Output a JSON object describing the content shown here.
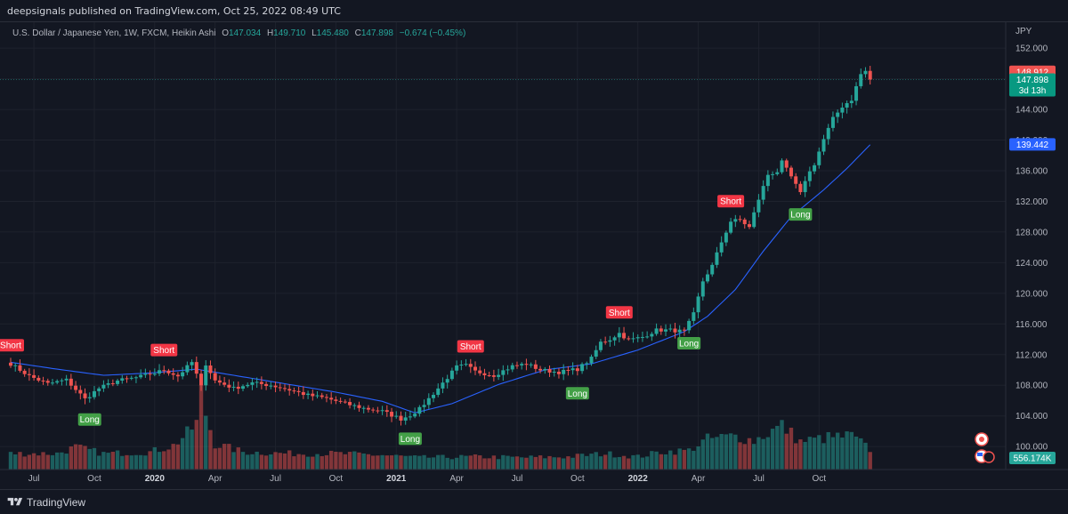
{
  "header": {
    "published": "deepsignals published on TradingView.com, Oct 25, 2022 08:49 UTC"
  },
  "legend": {
    "symbol": "U.S. Dollar / Japanese Yen, 1W, FXCM, Heikin Ashi",
    "o_label": "O",
    "o": "147.034",
    "h_label": "H",
    "h": "149.710",
    "l_label": "L",
    "l": "145.480",
    "c_label": "C",
    "c": "147.898",
    "change": "−0.674 (−0.45%)"
  },
  "footer": {
    "brand": "TradingView"
  },
  "colors": {
    "bg": "#131722",
    "up": "#26a69a",
    "down": "#ef5350",
    "ma": "#2962ff",
    "grid": "#1e222d",
    "text": "#b2b5be"
  },
  "chart_data": {
    "type": "candlestick",
    "currency": "JPY",
    "ylim": [
      97,
      155.5
    ],
    "y_ticks": [
      "152.000",
      "148.000",
      "144.000",
      "140.000",
      "136.000",
      "132.000",
      "128.000",
      "124.000",
      "120.000",
      "116.000",
      "112.000",
      "108.000",
      "104.000",
      "100.000"
    ],
    "x_ticks": [
      {
        "label": "Jul",
        "week": 5
      },
      {
        "label": "Oct",
        "week": 18
      },
      {
        "label": "2020",
        "week": 31,
        "bold": true
      },
      {
        "label": "Apr",
        "week": 44
      },
      {
        "label": "Jul",
        "week": 57
      },
      {
        "label": "Oct",
        "week": 70
      },
      {
        "label": "2021",
        "week": 83,
        "bold": true
      },
      {
        "label": "Apr",
        "week": 96
      },
      {
        "label": "Jul",
        "week": 109
      },
      {
        "label": "Oct",
        "week": 122
      },
      {
        "label": "2022",
        "week": 135,
        "bold": true
      },
      {
        "label": "Apr",
        "week": 148
      },
      {
        "label": "Jul",
        "week": 161
      },
      {
        "label": "Oct",
        "week": 174
      }
    ],
    "price_labels": [
      {
        "text": "148.912",
        "value": 148.912,
        "color": "#ef5350"
      },
      {
        "text": "147.898",
        "value": 147.898,
        "color": "#089981",
        "sub": "3d 13h"
      },
      {
        "text": "139.442",
        "value": 139.442,
        "color": "#2962ff"
      }
    ],
    "volume_label": "556.174K",
    "signals": [
      {
        "text": "Short",
        "week": 0,
        "type": "short"
      },
      {
        "text": "Long",
        "week": 17,
        "type": "long"
      },
      {
        "text": "Short",
        "week": 33,
        "type": "short"
      },
      {
        "text": "Long",
        "week": 86,
        "type": "long"
      },
      {
        "text": "Short",
        "week": 99,
        "type": "short"
      },
      {
        "text": "Long",
        "week": 122,
        "type": "long"
      },
      {
        "text": "Short",
        "week": 131,
        "type": "short"
      },
      {
        "text": "Long",
        "week": 146,
        "type": "long"
      },
      {
        "text": "Short",
        "week": 155,
        "type": "short"
      },
      {
        "text": "Long",
        "week": 170,
        "type": "long"
      }
    ],
    "anchors": [
      [
        0,
        110.8
      ],
      [
        4,
        109.2
      ],
      [
        8,
        108.2
      ],
      [
        12,
        108.7
      ],
      [
        16,
        106.2
      ],
      [
        19,
        107.6
      ],
      [
        23,
        108.6
      ],
      [
        27,
        109.0
      ],
      [
        31,
        109.6
      ],
      [
        33,
        110.0
      ],
      [
        36,
        109.2
      ],
      [
        39,
        111.0
      ],
      [
        41,
        107.8
      ],
      [
        42,
        110.8
      ],
      [
        44,
        108.6
      ],
      [
        48,
        107.6
      ],
      [
        52,
        108.3
      ],
      [
        56,
        108.0
      ],
      [
        60,
        107.4
      ],
      [
        64,
        106.7
      ],
      [
        68,
        106.3
      ],
      [
        72,
        105.6
      ],
      [
        76,
        105.0
      ],
      [
        80,
        104.6
      ],
      [
        84,
        103.6
      ],
      [
        86,
        104.1
      ],
      [
        88,
        104.9
      ],
      [
        92,
        107.6
      ],
      [
        96,
        110.4
      ],
      [
        98,
        110.6
      ],
      [
        100,
        109.8
      ],
      [
        104,
        109.3
      ],
      [
        108,
        110.5
      ],
      [
        111,
        110.8
      ],
      [
        114,
        110.0
      ],
      [
        118,
        109.7
      ],
      [
        122,
        110.1
      ],
      [
        125,
        111.5
      ],
      [
        127,
        113.6
      ],
      [
        129,
        114.0
      ],
      [
        131,
        114.8
      ],
      [
        133,
        113.9
      ],
      [
        136,
        114.3
      ],
      [
        139,
        115.2
      ],
      [
        142,
        115.2
      ],
      [
        145,
        115.0
      ],
      [
        147,
        117.3
      ],
      [
        149,
        121.6
      ],
      [
        151,
        123.6
      ],
      [
        153,
        126.7
      ],
      [
        155,
        129.4
      ],
      [
        157,
        129.6
      ],
      [
        159,
        128.6
      ],
      [
        161,
        132.3
      ],
      [
        163,
        135.5
      ],
      [
        165,
        135.9
      ],
      [
        166,
        137.1
      ],
      [
        168,
        135.2
      ],
      [
        170,
        133.0
      ],
      [
        171,
        134.8
      ],
      [
        173,
        136.9
      ],
      [
        175,
        140.1
      ],
      [
        177,
        142.8
      ],
      [
        179,
        144.4
      ],
      [
        181,
        145.3
      ],
      [
        183,
        148.6
      ],
      [
        184,
        149.0
      ],
      [
        185,
        147.9
      ]
    ],
    "ma_anchors": [
      [
        0,
        111.0
      ],
      [
        10,
        110.1
      ],
      [
        20,
        109.3
      ],
      [
        30,
        109.6
      ],
      [
        40,
        110.1
      ],
      [
        50,
        109.1
      ],
      [
        60,
        108.1
      ],
      [
        70,
        107.1
      ],
      [
        80,
        105.9
      ],
      [
        87,
        104.4
      ],
      [
        95,
        105.6
      ],
      [
        105,
        108.1
      ],
      [
        115,
        110.0
      ],
      [
        125,
        110.8
      ],
      [
        135,
        112.6
      ],
      [
        145,
        115.0
      ],
      [
        150,
        117.0
      ],
      [
        156,
        120.5
      ],
      [
        162,
        125.5
      ],
      [
        168,
        130.0
      ],
      [
        175,
        133.5
      ],
      [
        180,
        136.3
      ],
      [
        185,
        139.4
      ]
    ],
    "volume_shape": [
      [
        0,
        0.2
      ],
      [
        10,
        0.2
      ],
      [
        14,
        0.28
      ],
      [
        20,
        0.2
      ],
      [
        30,
        0.22
      ],
      [
        35,
        0.3
      ],
      [
        38,
        0.45
      ],
      [
        40,
        0.58
      ],
      [
        41,
        0.95
      ],
      [
        42,
        0.7
      ],
      [
        44,
        0.32
      ],
      [
        50,
        0.22
      ],
      [
        60,
        0.2
      ],
      [
        70,
        0.2
      ],
      [
        80,
        0.18
      ],
      [
        88,
        0.15
      ],
      [
        100,
        0.16
      ],
      [
        110,
        0.15
      ],
      [
        120,
        0.16
      ],
      [
        128,
        0.2
      ],
      [
        135,
        0.16
      ],
      [
        140,
        0.22
      ],
      [
        146,
        0.24
      ],
      [
        150,
        0.38
      ],
      [
        156,
        0.42
      ],
      [
        160,
        0.36
      ],
      [
        166,
        0.55
      ],
      [
        170,
        0.35
      ],
      [
        176,
        0.4
      ],
      [
        181,
        0.42
      ],
      [
        185,
        0.25
      ]
    ]
  }
}
